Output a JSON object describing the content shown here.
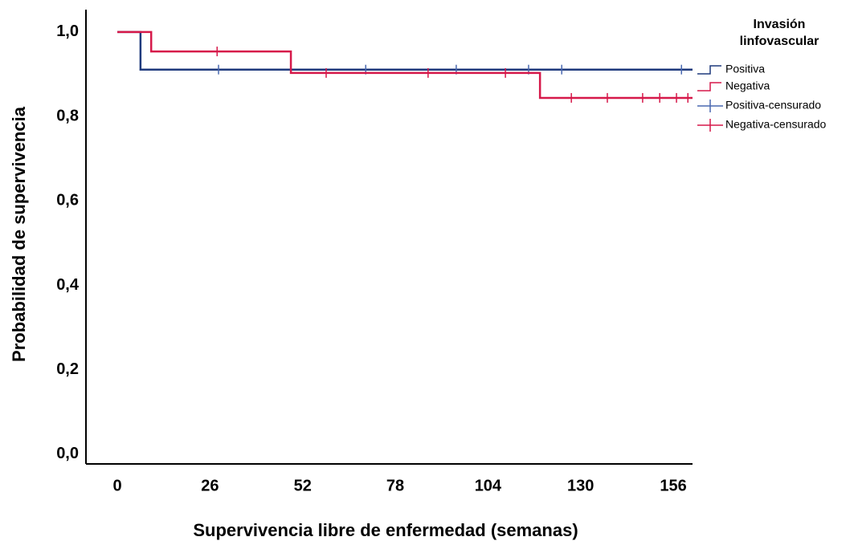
{
  "chart_data": {
    "type": "kaplan-meier",
    "x_label": "Supervivencia libre de enfermedad (semanas)",
    "y_label": "Probabilidad de supervivencia",
    "legend_title": [
      "Invasión",
      "linfovascular"
    ],
    "legend_position": "right",
    "xlim": [
      -8.8,
      161.4
    ],
    "ylim": [
      -0.023,
      1.053
    ],
    "xticks": [
      0,
      26,
      52,
      78,
      104,
      130,
      156
    ],
    "yticks": [
      {
        "value": 0,
        "label": "0,0"
      },
      {
        "value": 0.2,
        "label": "0,2"
      },
      {
        "value": 0.4,
        "label": "0,4"
      },
      {
        "value": 0.6,
        "label": "0,6"
      },
      {
        "value": 0.8,
        "label": "0,8"
      },
      {
        "value": 1,
        "label": "1,0"
      }
    ],
    "series": [
      {
        "name": "Positiva",
        "color": "#1f3a7d",
        "x": [
          0,
          6.5,
          161.4
        ],
        "values": [
          1,
          0.911,
          0.911
        ],
        "censor_name": "Positiva-censurado",
        "censor_color": "#4a69b0",
        "censor_x": [
          28.4,
          69.7,
          95.1,
          115.4,
          124.7,
          158.3
        ],
        "censor_values": [
          0.911,
          0.911,
          0.911,
          0.911,
          0.911,
          0.911
        ]
      },
      {
        "name": "Negativa",
        "color": "#d6194a",
        "x": [
          0,
          9.5,
          48.7,
          118.6,
          161.4
        ],
        "values": [
          1,
          0.954,
          0.903,
          0.844,
          0.844
        ],
        "censor_name": "Negativa-censurado",
        "censor_color": "#d6194a",
        "censor_x": [
          28,
          58.6,
          87.2,
          108.9,
          127.4,
          137.5,
          147.4,
          152.2,
          156.9,
          160.1
        ],
        "censor_values": [
          0.954,
          0.903,
          0.903,
          0.903,
          0.844,
          0.844,
          0.844,
          0.844,
          0.844,
          0.844
        ]
      }
    ]
  }
}
